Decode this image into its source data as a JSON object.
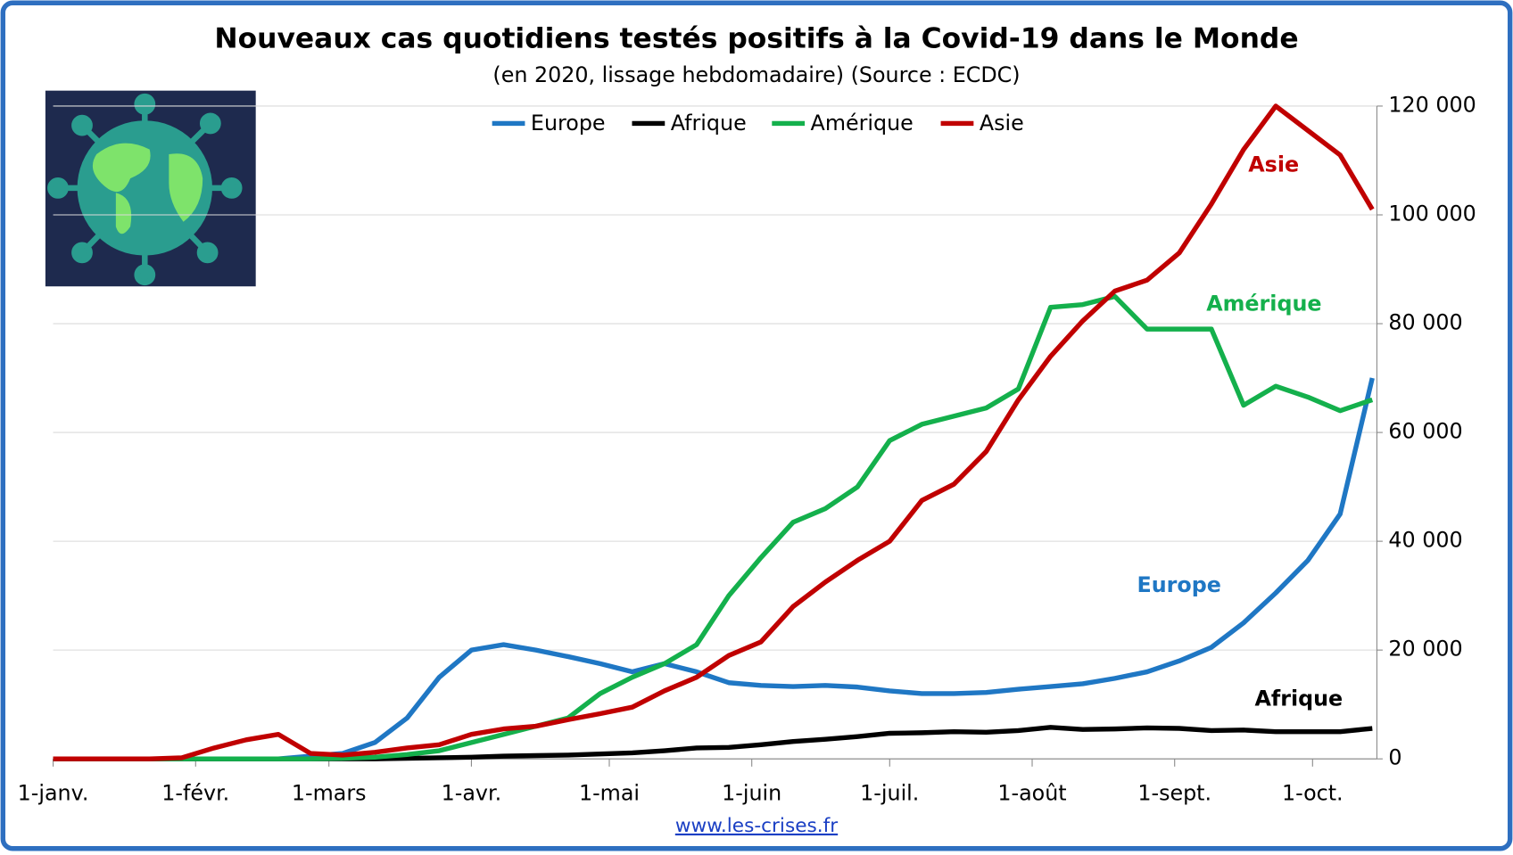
{
  "chart_data": {
    "type": "line",
    "title": "Nouveaux cas quotidiens testés positifs à la Covid-19 dans le Monde",
    "subtitle": "(en 2020, lissage hebdomadaire) (Source : ECDC)",
    "source": "www.les-crises.fr",
    "x": [
      0,
      7,
      14,
      21,
      28,
      35,
      42,
      49,
      56,
      63,
      70,
      77,
      84,
      91,
      98,
      105,
      112,
      119,
      126,
      133,
      140,
      147,
      154,
      161,
      168,
      175,
      182,
      189,
      196,
      203,
      210,
      217,
      224,
      231,
      238,
      245,
      252,
      259,
      266,
      273,
      280,
      287
    ],
    "xlim": [
      0,
      288
    ],
    "xticks": [
      {
        "value": 0,
        "label": "1-janv."
      },
      {
        "value": 31,
        "label": "1-févr."
      },
      {
        "value": 60,
        "label": "1-mars"
      },
      {
        "value": 91,
        "label": "1-avr."
      },
      {
        "value": 121,
        "label": "1-mai"
      },
      {
        "value": 152,
        "label": "1-juin"
      },
      {
        "value": 182,
        "label": "1-juil."
      },
      {
        "value": 213,
        "label": "1-août"
      },
      {
        "value": 244,
        "label": "1-sept."
      },
      {
        "value": 274,
        "label": "1-oct."
      }
    ],
    "ylim": [
      0,
      120000
    ],
    "yticks": [
      {
        "value": 0,
        "label": "0"
      },
      {
        "value": 20000,
        "label": "20 000"
      },
      {
        "value": 40000,
        "label": "40 000"
      },
      {
        "value": 60000,
        "label": "60 000"
      },
      {
        "value": 80000,
        "label": "80 000"
      },
      {
        "value": 100000,
        "label": "100 000"
      },
      {
        "value": 120000,
        "label": "120 000"
      }
    ],
    "grid": true,
    "legend": "top",
    "series": [
      {
        "name": "Europe",
        "color": "#1f77c4",
        "values": [
          0,
          0,
          0,
          0,
          0,
          0,
          0,
          0,
          500,
          1000,
          3000,
          7500,
          15000,
          20000,
          21000,
          20000,
          18800,
          17500,
          16000,
          17500,
          16000,
          14000,
          13500,
          13300,
          13500,
          13200,
          12500,
          12000,
          12000,
          12200,
          12800,
          13300,
          13800,
          14800,
          16000,
          18000,
          20500,
          25000,
          30500,
          36500,
          45000,
          70000
        ]
      },
      {
        "name": "Afrique",
        "color": "#000000",
        "values": [
          0,
          0,
          0,
          0,
          0,
          0,
          0,
          0,
          0,
          0,
          0,
          100,
          200,
          300,
          500,
          600,
          700,
          900,
          1100,
          1500,
          2000,
          2100,
          2600,
          3200,
          3600,
          4100,
          4700,
          4800,
          5000,
          4900,
          5200,
          5800,
          5400,
          5500,
          5700,
          5600,
          5200,
          5300,
          5000,
          5000,
          5000,
          5600
        ]
      },
      {
        "name": "Amérique",
        "color": "#14b04c",
        "values": [
          0,
          0,
          0,
          0,
          0,
          0,
          0,
          0,
          0,
          100,
          300,
          800,
          1500,
          3000,
          4500,
          6000,
          7500,
          12000,
          15000,
          17500,
          21000,
          30000,
          37000,
          43500,
          46000,
          50000,
          58500,
          61500,
          63000,
          64500,
          68000,
          83000,
          83500,
          85000,
          79000,
          79000,
          79000,
          65000,
          68500,
          66500,
          64000,
          66000
        ]
      },
      {
        "name": "Asie",
        "color": "#c00000",
        "values": [
          0,
          0,
          0,
          0,
          200,
          2000,
          3500,
          4500,
          1000,
          700,
          1200,
          2000,
          2600,
          4500,
          5500,
          6000,
          7200,
          8300,
          9500,
          12500,
          15000,
          19000,
          21500,
          28000,
          32500,
          36500,
          40000,
          47500,
          50500,
          56500,
          66000,
          74000,
          80500,
          86000,
          88000,
          93000,
          102000,
          112000,
          120000,
          115500,
          111000,
          101000
        ]
      }
    ]
  }
}
